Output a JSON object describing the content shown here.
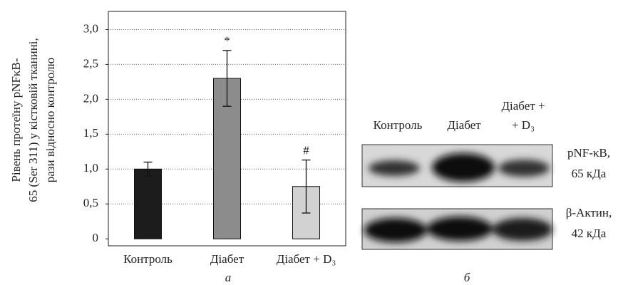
{
  "chart_data": {
    "type": "bar",
    "y_label": [
      "Рівень протеїну pNFκB-",
      "65 (Ser 311) у кістковій тканині,",
      "рази відносно контролю"
    ],
    "categories": [
      "Контроль",
      "Діабет",
      "Діабет + D₃"
    ],
    "values": [
      1.0,
      2.3,
      0.75
    ],
    "errors": [
      0.1,
      0.4,
      0.38
    ],
    "colors": [
      "#1c1c1c",
      "#8c8c8c",
      "#d2d2d2"
    ],
    "annotations": [
      {
        "category": "Діабет",
        "text": "*"
      },
      {
        "category": "Діабет + D₃",
        "text": "#"
      }
    ],
    "ylim": [
      -0.1,
      3.26
    ],
    "yticks": [
      0,
      {
        "value": 0.5,
        "label": "0,5"
      },
      {
        "value": 1.0,
        "label": "1,0"
      },
      {
        "value": 1.5,
        "label": "1,5"
      },
      {
        "value": 2.0,
        "label": "2,0"
      },
      {
        "value": 2.5,
        "label": "2,5"
      },
      {
        "value": 3.0,
        "label": "3,0"
      }
    ],
    "grid": true,
    "panel_label": "а"
  },
  "blot": {
    "columns": [
      [
        "Контроль"
      ],
      [
        "Діабет"
      ],
      [
        "Діабет +",
        "+ D₃"
      ]
    ],
    "rows": [
      [
        "pNF-κB,",
        "65 кДа"
      ],
      [
        "β-Актин,",
        "42 кДа"
      ]
    ],
    "panel_label": "б"
  }
}
